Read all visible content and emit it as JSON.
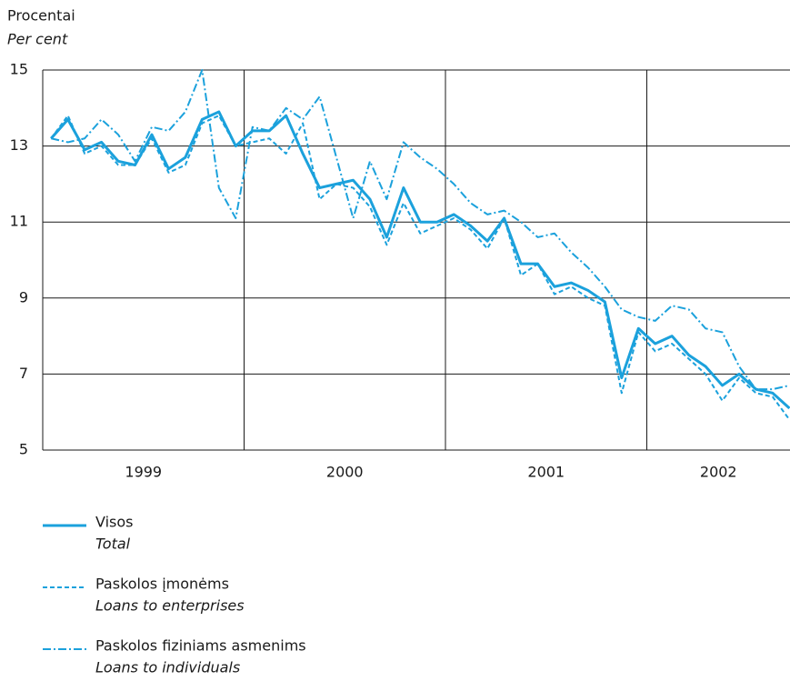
{
  "chart_data": {
    "type": "line",
    "y_label": "Procentai",
    "y_label_en": "Per cent",
    "categories": [
      null,
      null,
      null,
      null,
      null,
      null,
      null,
      null,
      null,
      null,
      null,
      null,
      null,
      null,
      null,
      null,
      null,
      null,
      null,
      null,
      null,
      null,
      null,
      null,
      null,
      null,
      null,
      null,
      null,
      null,
      null,
      null,
      null,
      null,
      null,
      null,
      null,
      null,
      null,
      null,
      null,
      null,
      null,
      null,
      null
    ],
    "x_groups": [
      "1999",
      "2000",
      "2001",
      "2002"
    ],
    "ylim": [
      5,
      15
    ],
    "yticks": [
      5,
      7,
      9,
      11,
      13,
      15
    ],
    "grid": true,
    "series": [
      {
        "name": "Visos",
        "name_en": "Total",
        "color": "#1ba1dc",
        "dash": "solid",
        "values": [
          13.2,
          13.7,
          12.9,
          13.1,
          12.6,
          12.5,
          13.3,
          12.4,
          12.7,
          13.7,
          13.9,
          13.0,
          13.4,
          13.4,
          13.8,
          12.8,
          11.9,
          12.0,
          12.1,
          11.6,
          10.6,
          11.9,
          11.0,
          11.0,
          11.2,
          10.9,
          10.5,
          11.1,
          9.9,
          9.9,
          9.3,
          9.4,
          9.2,
          8.9,
          6.9,
          8.2,
          7.8,
          8.0,
          7.5,
          7.2,
          6.7,
          7.0,
          6.6,
          6.5,
          6.1
        ]
      },
      {
        "name": "Paskolos įmonėms",
        "name_en": "Loans to enterprises",
        "color": "#1ba1dc",
        "dash": "dashed",
        "values": [
          13.2,
          13.8,
          12.8,
          13.0,
          12.5,
          12.5,
          13.2,
          12.3,
          12.5,
          13.6,
          13.8,
          13.0,
          13.1,
          13.2,
          12.8,
          13.6,
          11.6,
          12.0,
          11.9,
          11.4,
          10.4,
          11.5,
          10.7,
          10.9,
          11.1,
          10.8,
          10.3,
          11.1,
          9.6,
          9.9,
          9.1,
          9.3,
          9.0,
          8.8,
          6.5,
          8.1,
          7.6,
          7.8,
          7.4,
          7.0,
          6.3,
          6.9,
          6.5,
          6.4,
          5.8
        ]
      },
      {
        "name": "Paskolos fiziniams asmenims",
        "name_en": "Loans to individuals",
        "color": "#1ba1dc",
        "dash": "dashdot",
        "values": [
          13.2,
          13.1,
          13.2,
          13.7,
          13.3,
          12.6,
          13.5,
          13.4,
          13.9,
          15.0,
          11.9,
          11.1,
          13.5,
          13.4,
          14.0,
          13.7,
          14.3,
          12.7,
          11.1,
          12.6,
          11.6,
          13.1,
          12.7,
          12.4,
          12.0,
          11.5,
          11.2,
          11.3,
          11.0,
          10.6,
          10.7,
          10.2,
          9.8,
          9.3,
          8.7,
          8.5,
          8.4,
          8.8,
          8.7,
          8.2,
          8.1,
          7.2,
          6.6,
          6.6,
          6.7
        ]
      }
    ]
  }
}
